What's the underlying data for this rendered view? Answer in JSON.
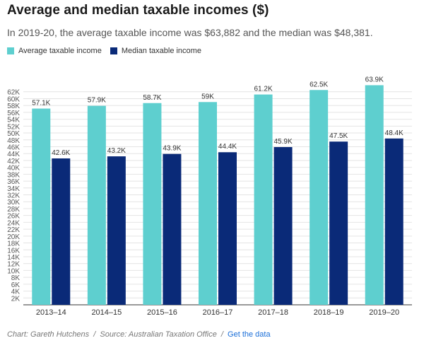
{
  "header": {
    "title": "Average and median taxable incomes ($)",
    "subtitle": "In 2019-20, the average taxable income was $63,882 and the median was $48,381."
  },
  "footer": {
    "credit": "Chart: Gareth Hutchens",
    "separator": "/",
    "source": "Source: Australian Taxation Office",
    "separator2": "/",
    "link_label": "Get the data"
  },
  "chart_data": {
    "type": "bar",
    "categories": [
      "2013–14",
      "2014–15",
      "2015–16",
      "2016–17",
      "2017–18",
      "2018–19",
      "2019–20"
    ],
    "series": [
      {
        "name": "Average taxable income",
        "color": "#5ecfcf",
        "values": [
          57.1,
          57.9,
          58.7,
          59,
          61.2,
          62.5,
          63.9
        ],
        "labels": [
          "57.1K",
          "57.9K",
          "58.7K",
          "59K",
          "61.2K",
          "62.5K",
          "63.9K"
        ]
      },
      {
        "name": "Median taxable income",
        "color": "#0a2a78",
        "values": [
          42.6,
          43.2,
          43.9,
          44.4,
          45.9,
          47.5,
          48.4
        ],
        "labels": [
          "42.6K",
          "43.2K",
          "43.9K",
          "44.4K",
          "45.9K",
          "47.5K",
          "48.4K"
        ]
      }
    ],
    "yticks": [
      2,
      4,
      6,
      8,
      10,
      12,
      14,
      16,
      18,
      20,
      22,
      24,
      26,
      28,
      30,
      32,
      34,
      36,
      38,
      40,
      42,
      44,
      46,
      48,
      50,
      52,
      54,
      56,
      58,
      60,
      62
    ],
    "ytick_labels": [
      "2K",
      "4K",
      "6K",
      "8K",
      "10K",
      "12K",
      "14K",
      "16K",
      "18K",
      "20K",
      "22K",
      "24K",
      "26K",
      "28K",
      "30K",
      "32K",
      "34K",
      "36K",
      "38K",
      "40K",
      "42K",
      "44K",
      "46K",
      "48K",
      "50K",
      "52K",
      "54K",
      "56K",
      "58K",
      "60K",
      "62K"
    ],
    "ylim": [
      0,
      64
    ],
    "grid": true,
    "legend_position": "top-left"
  }
}
